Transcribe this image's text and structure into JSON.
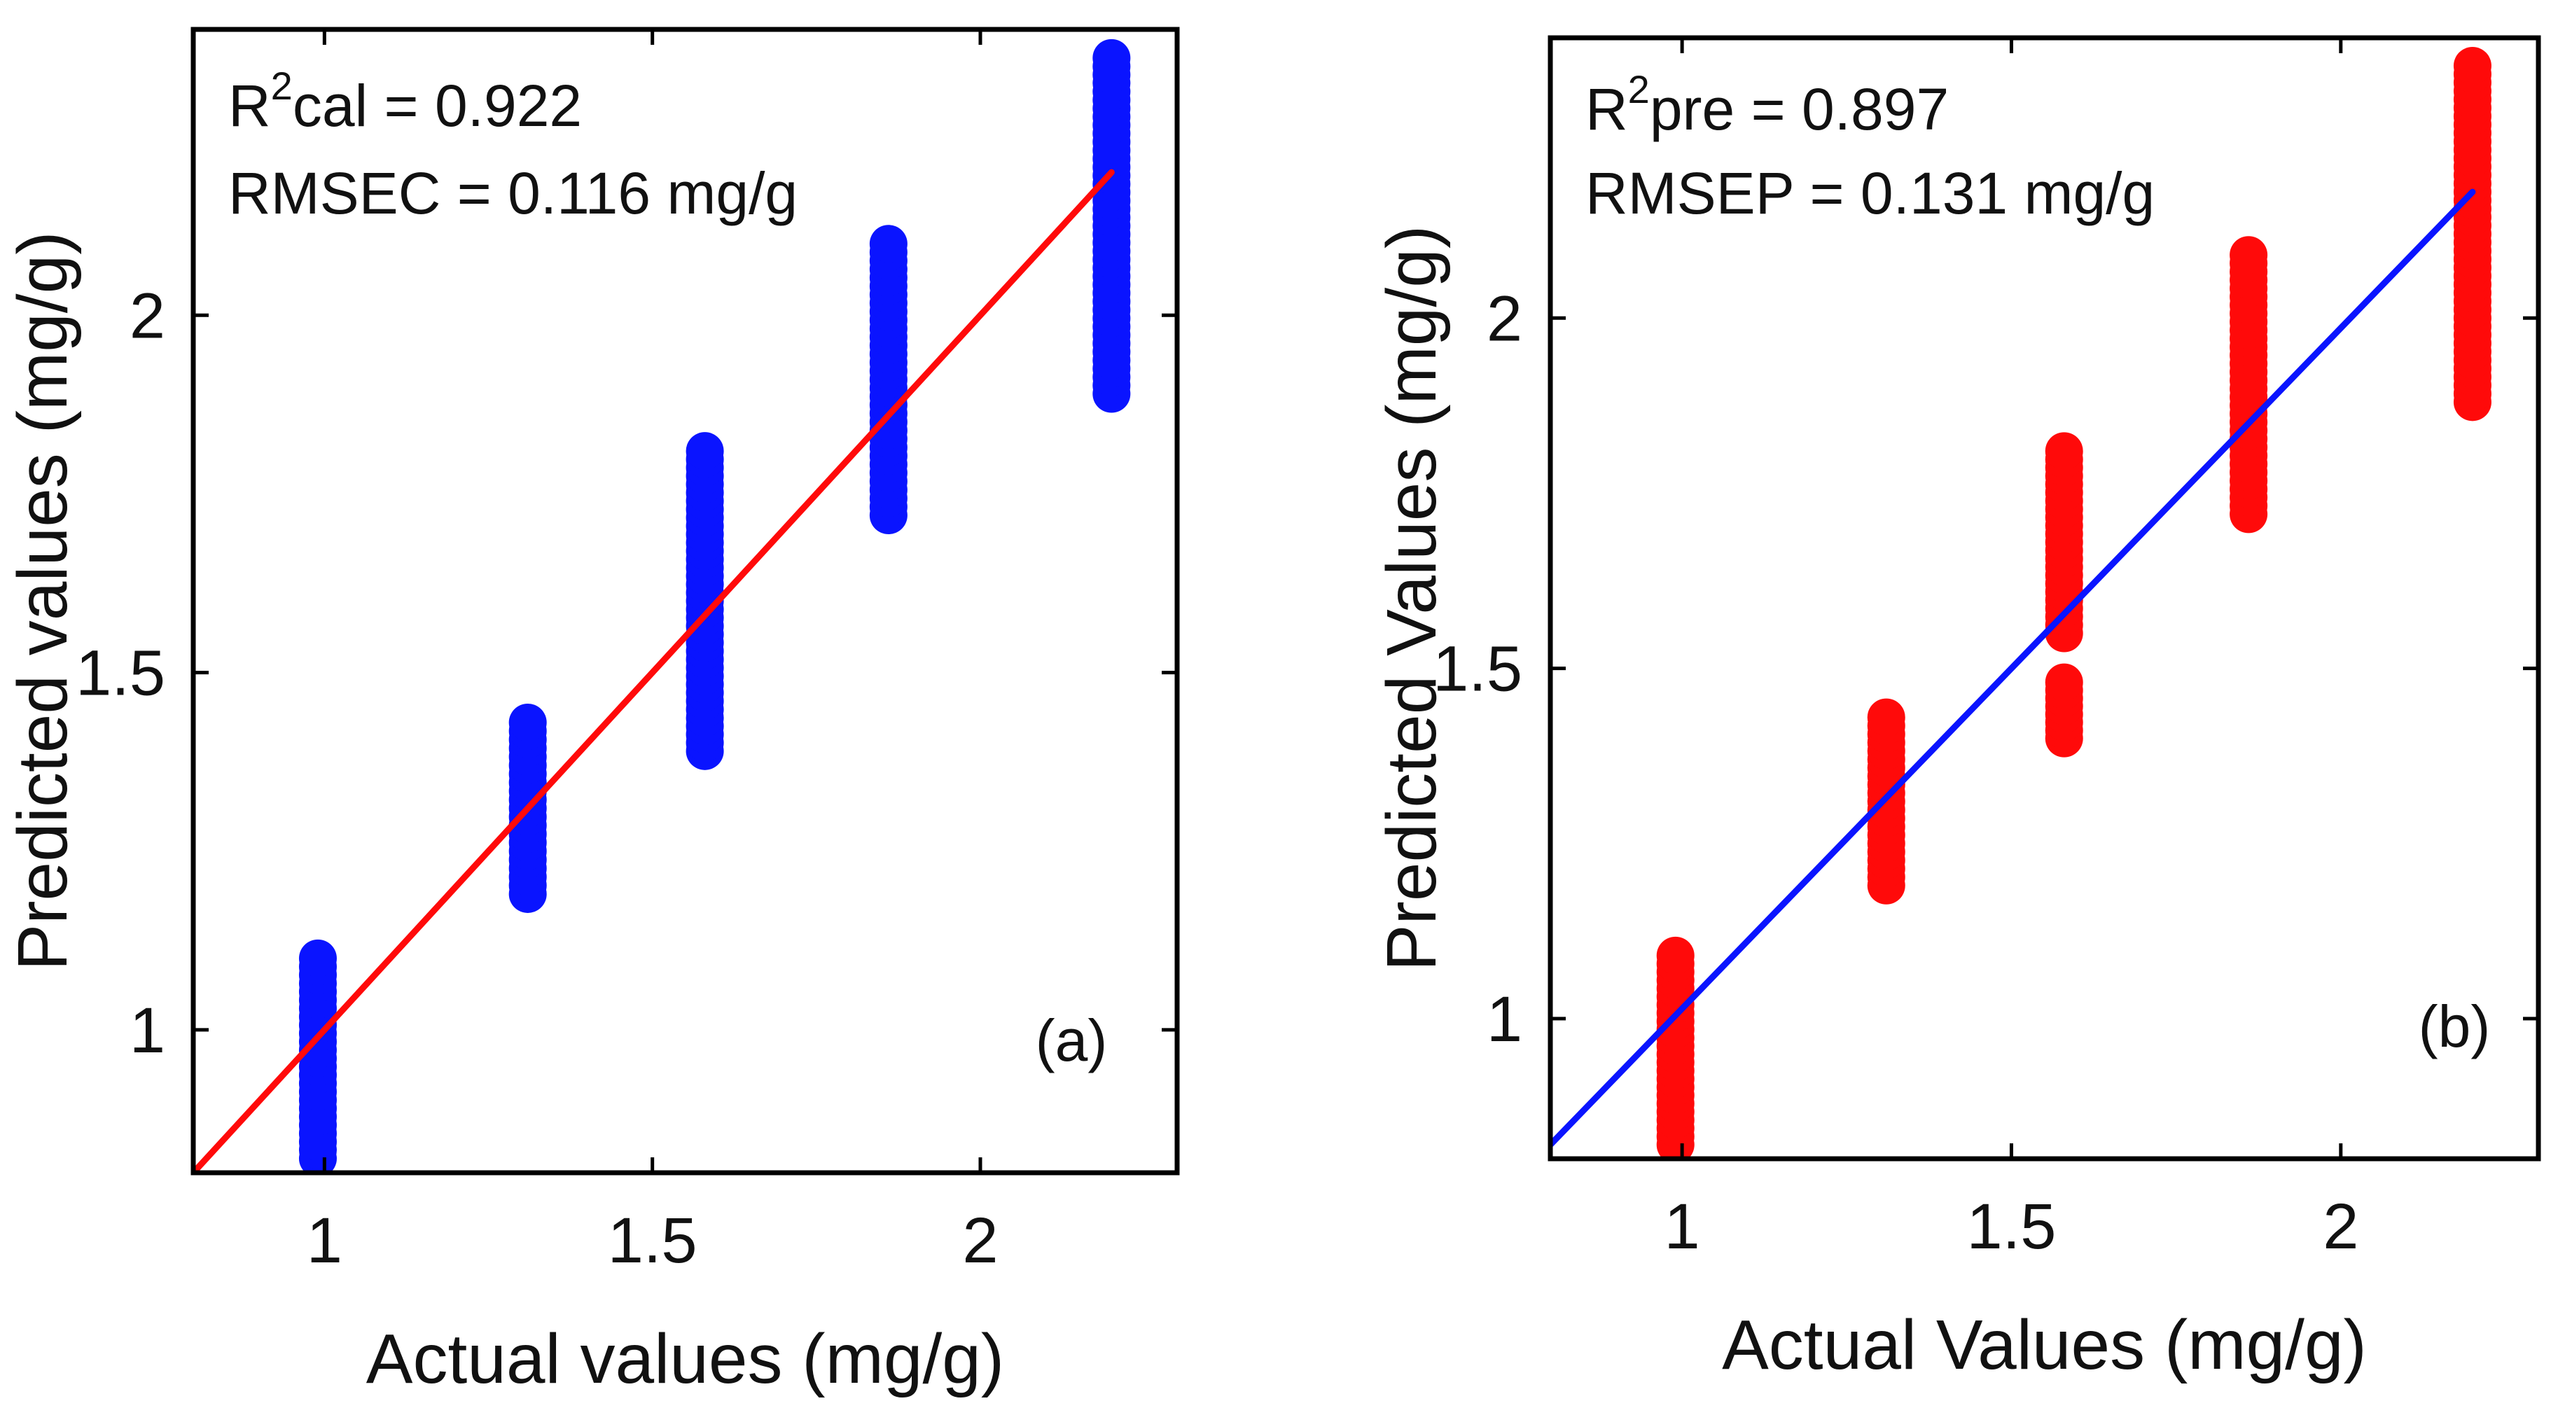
{
  "colors": {
    "blue": "#0a14ff",
    "red": "#ff0a0a",
    "axis": "#000000"
  },
  "chart_data": [
    {
      "type": "scatter",
      "panel_label": "(a)",
      "xlabel": "Actual values (mg/g)",
      "ylabel": "Predicted values (mg/g)",
      "xlim": [
        0.8,
        2.3
      ],
      "ylim": [
        0.8,
        2.4
      ],
      "xticks": [
        1,
        1.5,
        2
      ],
      "yticks": [
        1,
        1.5,
        2
      ],
      "grid": false,
      "annotations": {
        "r2_prefix": "R",
        "r2_sup": "2",
        "r2_rest": "cal = 0.922",
        "rmse": "RMSEC = 0.116 mg/g"
      },
      "marker_color": "#0a14ff",
      "line_color": "#ff0a0a",
      "fit_line": {
        "x": [
          0.8,
          2.2
        ],
        "y": [
          0.8,
          2.2
        ]
      },
      "series": [
        {
          "x": 0.99,
          "y_min": 0.82,
          "y_max": 1.1
        },
        {
          "x": 1.31,
          "y_min": 1.19,
          "y_max": 1.43
        },
        {
          "x": 1.58,
          "y_min": 1.39,
          "y_max": 1.81
        },
        {
          "x": 1.86,
          "y_min": 1.72,
          "y_max": 2.1
        },
        {
          "x": 2.2,
          "y_min": 1.89,
          "y_max": 2.36
        }
      ]
    },
    {
      "type": "scatter",
      "panel_label": "(b)",
      "xlabel": "Actual Values (mg/g)",
      "ylabel": "Predicted Values (mg/g)",
      "xlim": [
        0.8,
        2.3
      ],
      "ylim": [
        0.8,
        2.4
      ],
      "xticks": [
        1,
        1.5,
        2
      ],
      "yticks": [
        1,
        1.5,
        2
      ],
      "grid": false,
      "annotations": {
        "r2_prefix": "R",
        "r2_sup": "2",
        "r2_rest": "pre = 0.897",
        "rmse": "RMSEP = 0.131 mg/g"
      },
      "marker_color": "#ff0a0a",
      "line_color": "#0a14ff",
      "fit_line": {
        "x": [
          0.8,
          2.2
        ],
        "y": [
          0.82,
          2.18
        ]
      },
      "series": [
        {
          "x": 0.99,
          "y_min": 0.82,
          "y_max": 1.09
        },
        {
          "x": 1.31,
          "y_min": 1.19,
          "y_max": 1.43
        },
        {
          "x": 1.58,
          "y_min": 1.4,
          "y_max": 1.48
        },
        {
          "x": 1.58,
          "y_min": 1.55,
          "y_max": 1.81
        },
        {
          "x": 1.86,
          "y_min": 1.72,
          "y_max": 2.09
        },
        {
          "x": 2.2,
          "y_min": 1.88,
          "y_max": 2.36
        }
      ]
    }
  ]
}
